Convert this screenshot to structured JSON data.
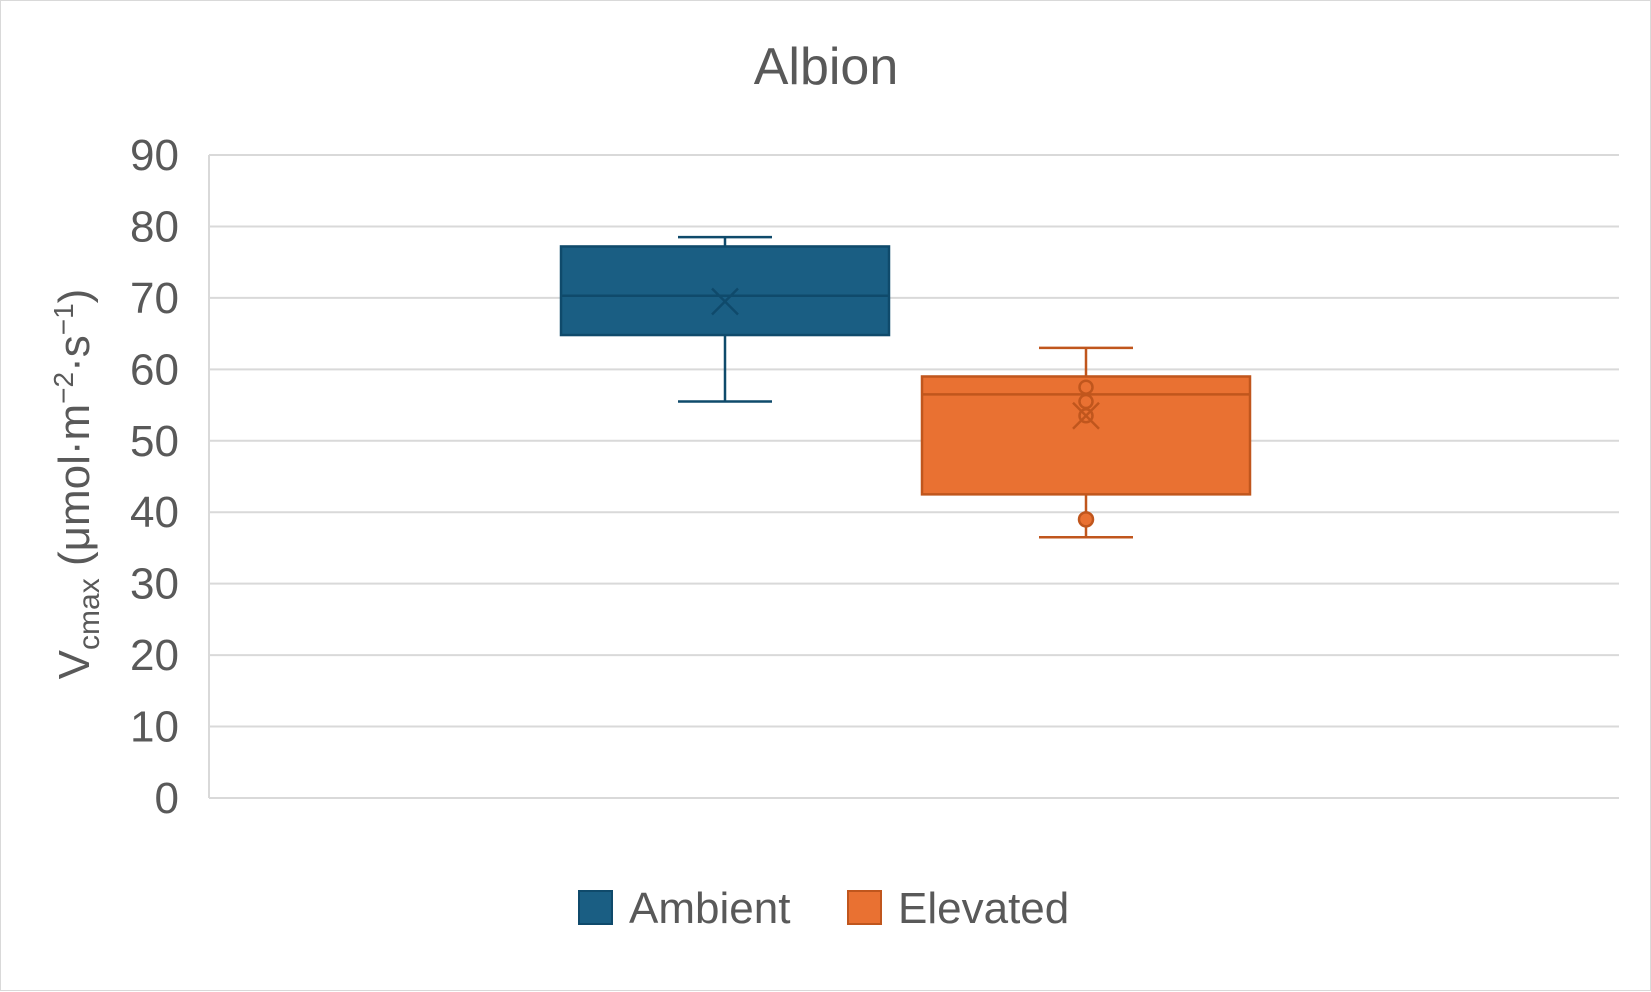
{
  "chart_data": {
    "type": "box",
    "title": "Albion",
    "ylabel": {
      "main": "V",
      "sub": "cmax",
      "units_prefix": " (μmol·m",
      "sup1": "−2",
      "units_mid": "·s",
      "sup2": "−1",
      "units_suffix": ")"
    },
    "ylim": [
      0,
      90
    ],
    "yticks": [
      0,
      10,
      20,
      30,
      40,
      50,
      60,
      70,
      80,
      90
    ],
    "ytick_labels": [
      "0",
      "10",
      "20",
      "30",
      "40",
      "50",
      "60",
      "70",
      "80",
      "90"
    ],
    "grid": true,
    "legend_position": "bottom",
    "series": [
      {
        "name": "Ambient",
        "color": "#1a5e83",
        "whisker_low": 55.5,
        "q1": 64.8,
        "median": 70.3,
        "q3": 77.2,
        "whisker_high": 78.5,
        "mean": 69.5,
        "inner_points": [],
        "outliers": []
      },
      {
        "name": "Elevated",
        "color": "#e97132",
        "stroke": "#c0561d",
        "whisker_low": 36.5,
        "q1": 42.5,
        "median": 56.5,
        "q3": 59.0,
        "whisker_high": 63.0,
        "mean": 53.5,
        "inner_points": [
          57.5,
          55.5,
          53.5
        ],
        "outliers": [
          39.0
        ]
      }
    ]
  }
}
